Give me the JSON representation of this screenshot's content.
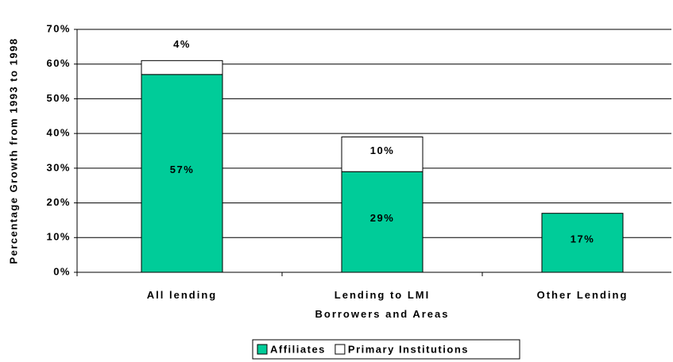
{
  "chart_data": {
    "type": "stacked_bar",
    "y_axis_label": "Percentage Growth from 1993 to 1998",
    "categories": [
      "All lending",
      "Lending to LMI Borrowers and Areas",
      "Other Lending"
    ],
    "series": [
      {
        "name": "Affiliates",
        "color": "#00cc99",
        "values": [
          57,
          29,
          17
        ],
        "value_labels": [
          "57%",
          "29%",
          "17%"
        ]
      },
      {
        "name": "Primary Institutions",
        "color": "#ffffff",
        "values": [
          4,
          10,
          null
        ],
        "value_labels": [
          "4%",
          "10%",
          null
        ]
      }
    ],
    "ylim": [
      0,
      70
    ],
    "yticks": [
      {
        "value": 0,
        "label": "0%"
      },
      {
        "value": 10,
        "label": "10%"
      },
      {
        "value": 20,
        "label": "20%"
      },
      {
        "value": 30,
        "label": "30%"
      },
      {
        "value": 40,
        "label": "40%"
      },
      {
        "value": 50,
        "label": "50%"
      },
      {
        "value": 60,
        "label": "60%"
      },
      {
        "value": 70,
        "label": "70%"
      }
    ],
    "grid": true,
    "legend": "bottom"
  }
}
